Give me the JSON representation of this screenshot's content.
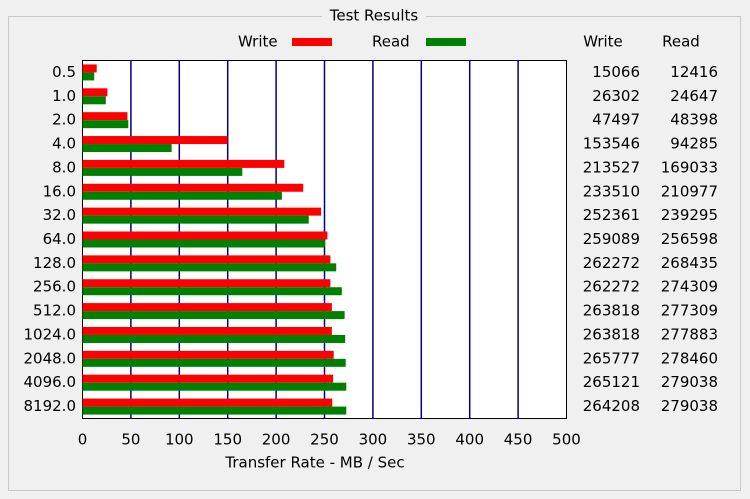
{
  "chart_data": {
    "type": "bar",
    "orientation": "horizontal",
    "title": "Test Results",
    "xlabel": "Transfer Rate - MB / Sec",
    "categories": [
      "0.5",
      "1.0",
      "2.0",
      "4.0",
      "8.0",
      "16.0",
      "32.0",
      "64.0",
      "128.0",
      "256.0",
      "512.0",
      "1024.0",
      "2048.0",
      "4096.0",
      "8192.0"
    ],
    "series": [
      {
        "name": "Write",
        "color": "#ff0000",
        "values": [
          14.7,
          25.7,
          46.4,
          149.9,
          208.5,
          228.0,
          246.4,
          253.0,
          256.1,
          256.1,
          257.6,
          257.6,
          259.5,
          258.9,
          258.0
        ]
      },
      {
        "name": "Read",
        "color": "#008000",
        "values": [
          12.1,
          24.1,
          47.3,
          92.1,
          165.1,
          206.0,
          233.7,
          250.6,
          262.1,
          267.9,
          270.8,
          271.4,
          271.9,
          272.5,
          272.5
        ]
      }
    ],
    "xlim": [
      0,
      500
    ],
    "xticks": [
      0,
      50,
      100,
      150,
      200,
      250,
      300,
      350,
      400,
      450,
      500
    ],
    "grid": true,
    "table": {
      "columns": [
        "Write",
        "Read"
      ],
      "rows": [
        [
          15066,
          12416
        ],
        [
          26302,
          24647
        ],
        [
          47497,
          48398
        ],
        [
          153546,
          94285
        ],
        [
          213527,
          169033
        ],
        [
          233510,
          210977
        ],
        [
          252361,
          239295
        ],
        [
          259089,
          256598
        ],
        [
          262272,
          268435
        ],
        [
          262272,
          274309
        ],
        [
          263818,
          277309
        ],
        [
          263818,
          277883
        ],
        [
          265777,
          278460
        ],
        [
          265121,
          279038
        ],
        [
          264208,
          279038
        ]
      ]
    }
  }
}
